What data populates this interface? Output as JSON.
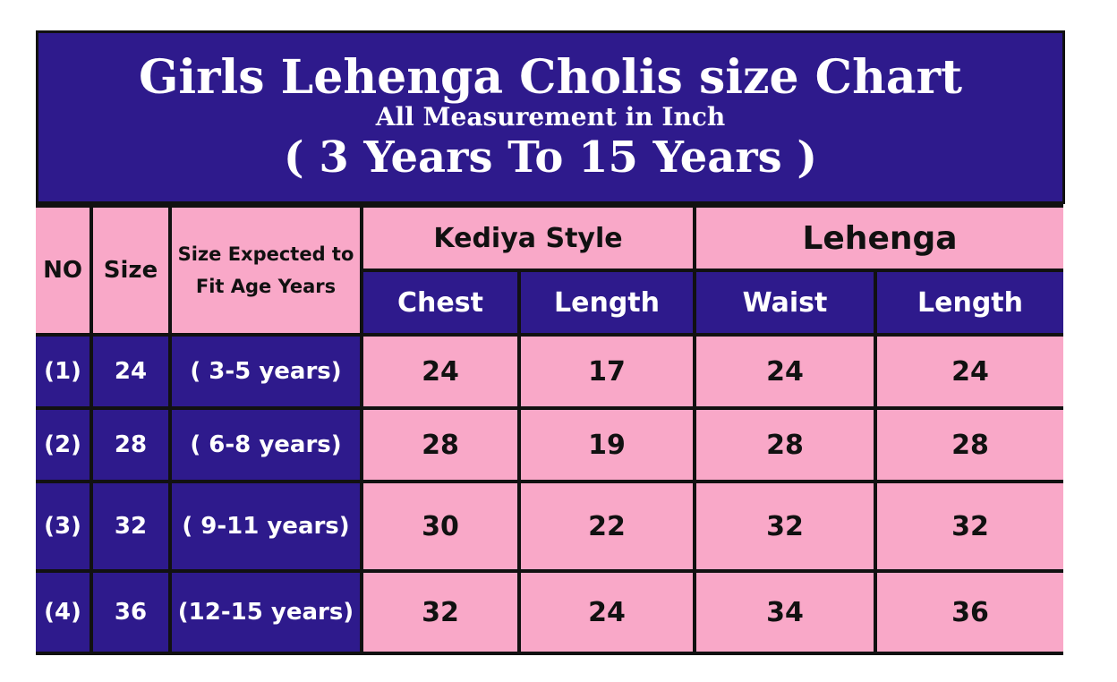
{
  "title": "Girls Lehenga Cholis size Chart",
  "subtitle": "All Measurement in Inch",
  "range": "( 3 Years To 15 Years )",
  "colors": {
    "header": "#2e1a8c",
    "cell": "#f9a8c8"
  },
  "headers": {
    "no": "NO",
    "size": "Size",
    "age": "Size Expected to Fit Age Years",
    "group1": "Kediya Style",
    "group2": "Lehenga",
    "chest": "Chest",
    "length1": "Length",
    "waist": "Waist",
    "length2": "Length"
  },
  "rows": [
    {
      "no": "(1)",
      "size": "24",
      "age": "( 3-5 years)",
      "chest": "24",
      "length1": "17",
      "waist": "24",
      "length2": "24"
    },
    {
      "no": "(2)",
      "size": "28",
      "age": "( 6-8 years)",
      "chest": "28",
      "length1": "19",
      "waist": "28",
      "length2": "28"
    },
    {
      "no": "(3)",
      "size": "32",
      "age": "( 9-11 years)",
      "chest": "30",
      "length1": "22",
      "waist": "32",
      "length2": "32"
    },
    {
      "no": "(4)",
      "size": "36",
      "age": "(12-15 years)",
      "chest": "32",
      "length1": "24",
      "waist": "34",
      "length2": "36"
    }
  ]
}
